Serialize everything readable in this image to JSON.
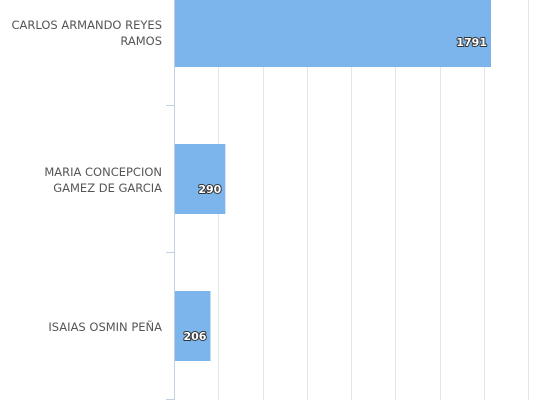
{
  "chart_data": {
    "type": "bar",
    "orientation": "horizontal",
    "categories": [
      "CARLOS ARMANDO REYES RAMOS",
      "MARIA CONCEPCION GAMEZ DE GARCIA",
      "ISAIAS OSMIN PEÑA"
    ],
    "values": [
      1791,
      290,
      206
    ],
    "xlim": [
      0,
      2000
    ],
    "grid": true,
    "bar_color": "#7cb5ec",
    "grid_color": "#dde8ed",
    "axis_color": "#c0d0e0",
    "label_color": "#555555"
  }
}
